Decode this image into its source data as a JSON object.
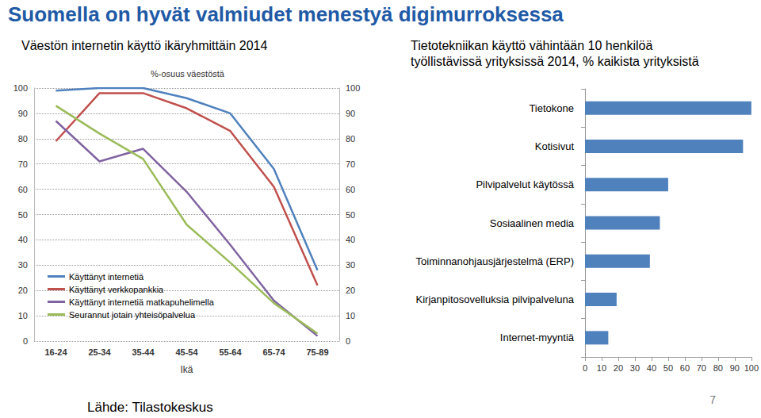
{
  "slide": {
    "title": "Suomella on hyvät valmiudet menestyä digimurroksessa",
    "source": "Lähde: Tilastokeskus",
    "page": "7"
  },
  "chart_data": [
    {
      "type": "line",
      "title": "Väestön internetin käyttö ikäryhmittäin 2014",
      "subtitle": "%-osuus väestöstä",
      "x_label": "Ikä",
      "categories": [
        "16-24",
        "25-34",
        "35-44",
        "45-54",
        "55-64",
        "65-74",
        "75-89"
      ],
      "series": [
        {
          "name": "Käyttänyt internetiä",
          "color": "#4F81BD",
          "values": [
            99,
            100,
            100,
            96,
            90,
            68,
            28
          ]
        },
        {
          "name": "Käyttänyt verkkopankkia",
          "color": "#C0504D",
          "values": [
            79,
            98,
            98,
            92,
            83,
            61,
            22
          ]
        },
        {
          "name": "Käyttänyt internetiä matkapuhelimella",
          "color": "#8064A2",
          "values": [
            87,
            71,
            76,
            59,
            38,
            16,
            2
          ]
        },
        {
          "name": "Seurannut jotain yhteisöpalvelua",
          "color": "#9BBB59",
          "values": [
            93,
            82,
            72,
            46,
            31,
            15,
            3
          ]
        }
      ],
      "ylim": [
        0,
        100
      ],
      "yticks": [
        0,
        10,
        20,
        30,
        40,
        50,
        60,
        70,
        80,
        90,
        100
      ],
      "y2lim": [
        0,
        100
      ],
      "y2ticks": [
        0,
        10,
        20,
        30,
        40,
        50,
        60,
        70,
        80,
        90,
        100
      ],
      "grid": true,
      "legend": "lower left"
    },
    {
      "type": "bar",
      "orientation": "horizontal",
      "title": "Tietotekniikan käyttö vähintään 10 henkilöä\ntyöllistävissä yrityksissä 2014, % kaikista yrityksistä",
      "categories": [
        "Tietokone",
        "Kotisivut",
        "Pilvipalvelut käytössä",
        "Sosiaalinen media",
        "Toiminnanohjausjärjestelmä (ERP)",
        "Kirjanpitosovelluksia pilvipalveluna",
        "Internet-myyntiä"
      ],
      "values": [
        100,
        95,
        50,
        45,
        39,
        19,
        14
      ],
      "color": "#4F81BD",
      "xlim": [
        0,
        100
      ],
      "xticks": [
        0,
        10,
        20,
        30,
        40,
        50,
        60,
        70,
        80,
        90,
        100
      ],
      "grid": false
    }
  ]
}
